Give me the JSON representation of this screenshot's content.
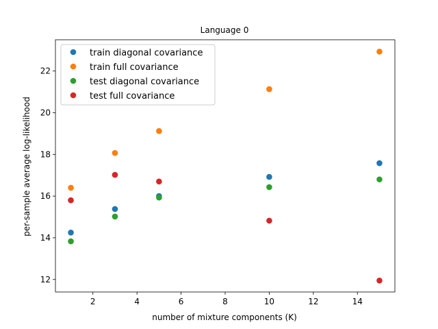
{
  "chart_data": {
    "type": "scatter",
    "title": "Language 0",
    "xlabel": "number of mixture components (K)",
    "ylabel": "per-sample average log-likelihood",
    "xlim": [
      0.3,
      15.7
    ],
    "ylim": [
      11.4,
      23.5
    ],
    "xticks": [
      2,
      4,
      6,
      8,
      10,
      12,
      14
    ],
    "yticks": [
      12,
      14,
      16,
      18,
      20,
      22
    ],
    "grid": false,
    "legend_position": "upper-left",
    "series": [
      {
        "name": "train diagonal covariance",
        "color": "#1f77b4",
        "x": [
          1,
          3,
          5,
          10,
          15
        ],
        "y": [
          14.25,
          15.38,
          16.0,
          16.92,
          17.58
        ]
      },
      {
        "name": "train full covariance",
        "color": "#ff7f0e",
        "x": [
          1,
          3,
          5,
          10,
          15
        ],
        "y": [
          16.4,
          18.07,
          19.12,
          21.13,
          22.93
        ]
      },
      {
        "name": "test diagonal covariance",
        "color": "#2ca02c",
        "x": [
          1,
          3,
          5,
          10,
          15
        ],
        "y": [
          13.83,
          15.02,
          15.93,
          16.43,
          16.8
        ]
      },
      {
        "name": "test full covariance",
        "color": "#d62728",
        "x": [
          1,
          3,
          5,
          10,
          15
        ],
        "y": [
          15.8,
          17.02,
          16.7,
          14.82,
          11.95
        ]
      }
    ]
  }
}
